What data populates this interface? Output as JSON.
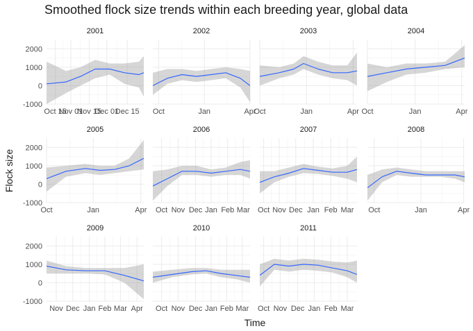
{
  "chart_data": {
    "type": "line",
    "title": "Smoothed flock size trends within each breeding year, global data",
    "xlabel": "Time",
    "ylabel": "Flock size",
    "y_ticks": [
      "2000",
      "1000",
      "0",
      "-1000"
    ],
    "y_tick_values": [
      2000,
      1000,
      0,
      -1000
    ],
    "ylim": [
      -1000,
      2500
    ],
    "line_color": "#3366FF",
    "ribbon_color": "#999999",
    "grid": true,
    "panels": [
      {
        "label": "2001",
        "xlim": [
          0,
          100
        ],
        "x_tick_labels": [
          "Oct 15",
          "Nov 01",
          "Nov 15",
          "Dec 01",
          "Dec 15"
        ],
        "x_tick_pos": [
          0.09,
          0.25,
          0.44,
          0.62,
          0.83
        ],
        "x": [
          0,
          20,
          35,
          50,
          65,
          80,
          95,
          100
        ],
        "y": [
          100,
          200,
          500,
          900,
          900,
          700,
          600,
          700
        ],
        "ymin": [
          -1000,
          -400,
          0,
          400,
          600,
          100,
          -100,
          -600
        ],
        "ymax": [
          1300,
          800,
          1000,
          1400,
          1200,
          1200,
          1300,
          1600
        ]
      },
      {
        "label": "2002",
        "xlim": [
          0,
          100
        ],
        "x_tick_labels": [
          "Oct",
          "Jan",
          "Apr"
        ],
        "x_tick_pos": [
          0.06,
          0.53,
          1.0
        ],
        "x": [
          0,
          15,
          30,
          45,
          60,
          75,
          90,
          100
        ],
        "y": [
          0,
          400,
          600,
          500,
          600,
          700,
          400,
          0
        ],
        "ymin": [
          -500,
          100,
          300,
          200,
          300,
          400,
          -100,
          -900
        ],
        "ymax": [
          700,
          900,
          900,
          800,
          900,
          1000,
          900,
          800
        ]
      },
      {
        "label": "2003",
        "xlim": [
          0,
          100
        ],
        "x_tick_labels": [
          "Oct",
          "Jan",
          "Apr"
        ],
        "x_tick_pos": [
          0.0,
          0.48,
          0.96
        ],
        "x": [
          0,
          20,
          35,
          45,
          60,
          75,
          90,
          100
        ],
        "y": [
          500,
          700,
          900,
          1200,
          900,
          700,
          700,
          800
        ],
        "ymin": [
          0,
          400,
          600,
          900,
          600,
          400,
          300,
          0
        ],
        "ymax": [
          1100,
          1000,
          1200,
          1600,
          1300,
          1100,
          1100,
          1800
        ]
      },
      {
        "label": "2004",
        "xlim": [
          0,
          100
        ],
        "x_tick_labels": [
          "Oct",
          "Jan",
          "Apr"
        ],
        "x_tick_pos": [
          0.0,
          0.49,
          0.97
        ],
        "x": [
          0,
          20,
          40,
          60,
          80,
          100
        ],
        "y": [
          500,
          700,
          900,
          1000,
          1100,
          1500
        ],
        "ymin": [
          -300,
          200,
          600,
          700,
          900,
          1000
        ],
        "ymax": [
          1200,
          1000,
          1200,
          1200,
          1300,
          2200
        ]
      },
      {
        "label": "2005",
        "xlim": [
          0,
          100
        ],
        "x_tick_labels": [
          "Oct",
          "Jan",
          "Apr"
        ],
        "x_tick_pos": [
          0.0,
          0.48,
          0.97
        ],
        "x": [
          0,
          20,
          40,
          55,
          70,
          85,
          100
        ],
        "y": [
          300,
          700,
          850,
          750,
          800,
          1000,
          1400
        ],
        "ymin": [
          -400,
          400,
          600,
          500,
          600,
          700,
          800
        ],
        "ymax": [
          900,
          1000,
          1100,
          1000,
          1000,
          1400,
          2400
        ]
      },
      {
        "label": "2006",
        "xlim": [
          0,
          100
        ],
        "x_tick_labels": [
          "Oct",
          "Nov",
          "Dec",
          "Jan",
          "Feb",
          "Mar"
        ],
        "x_tick_pos": [
          0.09,
          0.26,
          0.44,
          0.6,
          0.77,
          0.93
        ],
        "x": [
          0,
          15,
          30,
          45,
          60,
          75,
          90,
          100
        ],
        "y": [
          -100,
          300,
          700,
          700,
          600,
          700,
          800,
          700
        ],
        "ymin": [
          -900,
          -100,
          500,
          500,
          400,
          500,
          500,
          300
        ],
        "ymax": [
          700,
          800,
          1000,
          1000,
          800,
          900,
          1200,
          1300
        ]
      },
      {
        "label": "2007",
        "xlim": [
          0,
          100
        ],
        "x_tick_labels": [
          "Oct",
          "Nov",
          "Dec",
          "Jan",
          "Feb",
          "Mar"
        ],
        "x_tick_pos": [
          0.04,
          0.2,
          0.37,
          0.55,
          0.73,
          0.9
        ],
        "x": [
          0,
          15,
          30,
          45,
          60,
          75,
          90,
          100
        ],
        "y": [
          100,
          400,
          600,
          850,
          750,
          650,
          650,
          800
        ],
        "ymin": [
          -500,
          100,
          400,
          600,
          550,
          450,
          300,
          100
        ],
        "ymax": [
          700,
          700,
          900,
          1100,
          950,
          850,
          1000,
          1500
        ]
      },
      {
        "label": "2008",
        "xlim": [
          0,
          100
        ],
        "x_tick_labels": [
          "Oct",
          "Jan",
          "Apr"
        ],
        "x_tick_pos": [
          0.07,
          0.55,
          0.99
        ],
        "x": [
          0,
          15,
          30,
          45,
          60,
          75,
          90,
          100
        ],
        "y": [
          -200,
          400,
          700,
          600,
          500,
          500,
          500,
          400
        ],
        "ymin": [
          -900,
          100,
          500,
          400,
          400,
          400,
          300,
          100
        ],
        "ymax": [
          500,
          800,
          900,
          800,
          700,
          700,
          700,
          700
        ]
      },
      {
        "label": "2009",
        "xlim": [
          0,
          100
        ],
        "x_tick_labels": [
          "Nov",
          "Dec",
          "Jan",
          "Feb",
          "Mar",
          "Apr"
        ],
        "x_tick_pos": [
          0.1,
          0.27,
          0.44,
          0.6,
          0.76,
          0.93
        ],
        "x": [
          0,
          20,
          40,
          60,
          80,
          100
        ],
        "y": [
          900,
          700,
          650,
          650,
          400,
          100
        ],
        "ymin": [
          500,
          500,
          500,
          450,
          0,
          -900
        ],
        "ymax": [
          1200,
          900,
          800,
          800,
          800,
          1000
        ]
      },
      {
        "label": "2010",
        "xlim": [
          0,
          100
        ],
        "x_tick_labels": [
          "Oct",
          "Nov",
          "Dec",
          "Jan",
          "Feb",
          "Mar"
        ],
        "x_tick_pos": [
          0.09,
          0.26,
          0.44,
          0.6,
          0.76,
          0.92
        ],
        "x": [
          0,
          20,
          40,
          55,
          70,
          85,
          100
        ],
        "y": [
          300,
          450,
          600,
          650,
          500,
          400,
          300
        ],
        "ymin": [
          0,
          300,
          450,
          500,
          300,
          200,
          0
        ],
        "ymax": [
          600,
          700,
          800,
          800,
          700,
          700,
          700
        ]
      },
      {
        "label": "2011",
        "xlim": [
          0,
          100
        ],
        "x_tick_labels": [
          "Oct",
          "Nov",
          "Dec",
          "Jan",
          "Feb",
          "Mar"
        ],
        "x_tick_pos": [
          0.04,
          0.21,
          0.39,
          0.56,
          0.73,
          0.9
        ],
        "x": [
          0,
          15,
          30,
          45,
          60,
          75,
          90,
          100
        ],
        "y": [
          400,
          1000,
          900,
          1000,
          950,
          800,
          650,
          450
        ],
        "ymin": [
          -200,
          700,
          600,
          700,
          650,
          550,
          300,
          0
        ],
        "ymax": [
          1000,
          1300,
          1200,
          1300,
          1250,
          1150,
          1100,
          1200
        ]
      }
    ]
  }
}
